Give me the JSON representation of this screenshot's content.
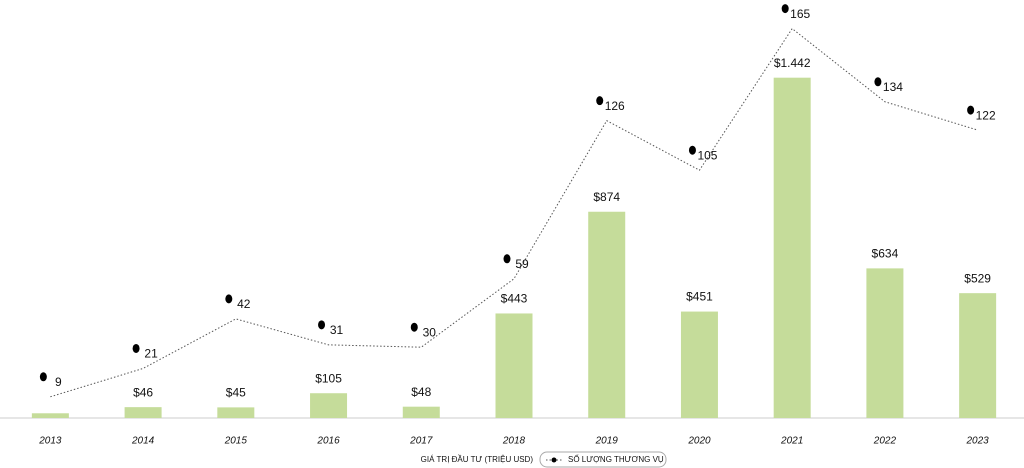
{
  "chart_data": {
    "type": "bar-line",
    "categories": [
      "2013",
      "2014",
      "2015",
      "2016",
      "2017",
      "2018",
      "2019",
      "2020",
      "2021",
      "2022",
      "2023"
    ],
    "series": [
      {
        "name": "GIÁ TRỊ ĐẦU TƯ (TRIỆU USD)",
        "color": "#c5dc9a",
        "type": "bar",
        "values": [
          20,
          46,
          45,
          105,
          48,
          443,
          874,
          451,
          1442,
          634,
          529
        ],
        "value_labels": [
          null,
          "$46",
          "$45",
          "$105",
          "$48",
          "$443",
          "$874",
          "$451",
          "$1.442",
          "$634",
          "$529"
        ]
      },
      {
        "name": "SỐ LƯỢNG THƯƠNG VỤ",
        "color": "#555555",
        "type": "line",
        "axis": "y2",
        "values": [
          9,
          21,
          42,
          31,
          30,
          59,
          126,
          105,
          165,
          134,
          122
        ]
      }
    ],
    "ylim": [
      0,
      1750
    ],
    "y2lim": [
      0,
      175
    ]
  }
}
